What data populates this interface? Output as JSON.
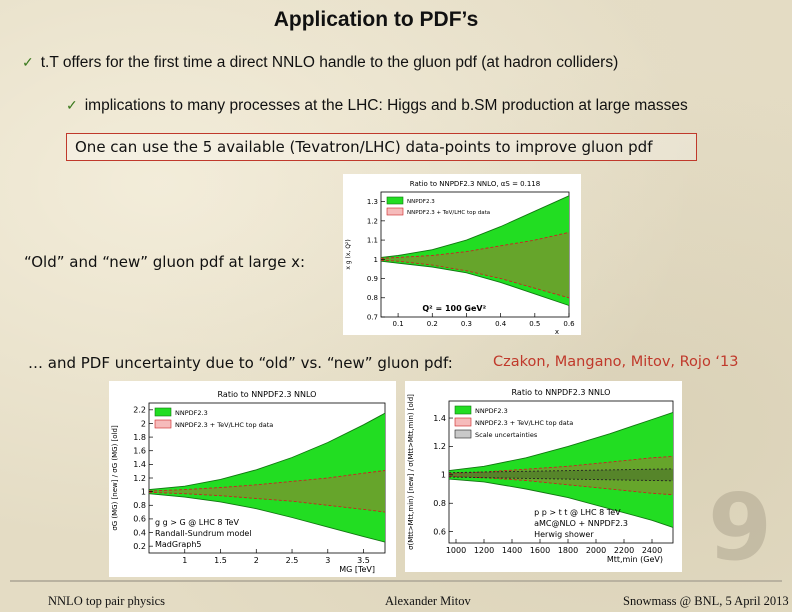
{
  "title": "Application to PDF’s",
  "bullets": [
    {
      "check": "✓",
      "text": "t.T offers for the first time a direct NNLO handle to the gluon pdf (at hadron colliders)"
    },
    {
      "check": "✓",
      "text": "implications to many processes at the LHC: Higgs and b.SM production at large masses"
    }
  ],
  "highlight": "One can use the 5 available (Tevatron/LHC) data-points to improve gluon pdf",
  "label_old_new": "“Old” and “new” gluon pdf at large x:",
  "label_uncertainty": "… and PDF uncertainty due to “old” vs. “new” gluon pdf:",
  "authors": "Czakon, Mangano, Mitov, Rojo ‘13",
  "page_number": "9",
  "footer": {
    "left": "NNLO top pair physics",
    "middle": "Alexander Mitov",
    "right": "Snowmass @ BNL, 5 April 2013"
  },
  "chart_data": [
    {
      "type": "area",
      "title": "Ratio to NNPDF2.3 NNLO, αS = 0.118",
      "ylabel": "x g (x, Q²)",
      "xlabel": "x",
      "annotation": "Q² = 100 GeV²",
      "legend": [
        "NNPDF2.3",
        "NNPDF2.3 + TeV/LHC top data"
      ],
      "legend_placement": "top-left",
      "x_ticks": [
        "0.1",
        "0.2",
        "0.3",
        "0.4",
        "0.5",
        "0.6"
      ],
      "y_ticks": [
        "0.7",
        "0.8",
        "0.9",
        "1",
        "1.1",
        "1.2",
        "1.3"
      ],
      "xlim": [
        0.05,
        0.6
      ],
      "ylim": [
        0.7,
        1.35
      ],
      "series": [
        {
          "name": "NNPDF2.3",
          "x": [
            0.05,
            0.1,
            0.2,
            0.3,
            0.4,
            0.5,
            0.6
          ],
          "lower": [
            0.99,
            0.98,
            0.96,
            0.93,
            0.88,
            0.82,
            0.76
          ],
          "upper": [
            1.01,
            1.02,
            1.05,
            1.1,
            1.17,
            1.25,
            1.33
          ]
        },
        {
          "name": "NNPDF2.3 + TeV/LHC top data",
          "x": [
            0.05,
            0.1,
            0.2,
            0.3,
            0.4,
            0.5,
            0.6
          ],
          "lower": [
            0.995,
            0.99,
            0.97,
            0.94,
            0.9,
            0.85,
            0.8
          ],
          "upper": [
            1.005,
            1.01,
            1.02,
            1.04,
            1.07,
            1.1,
            1.14
          ]
        }
      ]
    },
    {
      "type": "area",
      "title": "Ratio to NNPDF2.3 NNLO",
      "ylabel": "σG (MG) [new] / σG (MG) [old]",
      "xlabel": "MG [TeV]",
      "annotation": [
        "g g > G @ LHC 8 TeV",
        "Randall-Sundrum model",
        "MadGraph5"
      ],
      "legend": [
        "NNPDF2.3",
        "NNPDF2.3 + TeV/LHC top data"
      ],
      "legend_placement": "top-left",
      "x_ticks": [
        "1",
        "1.5",
        "2",
        "2.5",
        "3",
        "3.5"
      ],
      "y_ticks": [
        "0.2",
        "0.4",
        "0.6",
        "0.8",
        "1",
        "1.2",
        "1.4",
        "1.6",
        "1.8",
        "2",
        "2.2"
      ],
      "xlim": [
        0.5,
        3.8
      ],
      "ylim": [
        0.1,
        2.3
      ],
      "series": [
        {
          "name": "NNPDF2.3",
          "x": [
            0.5,
            1.0,
            1.5,
            2.0,
            2.5,
            3.0,
            3.5,
            3.8
          ],
          "lower": [
            0.97,
            0.92,
            0.85,
            0.75,
            0.62,
            0.48,
            0.34,
            0.26
          ],
          "upper": [
            1.03,
            1.08,
            1.18,
            1.32,
            1.5,
            1.72,
            1.98,
            2.15
          ]
        },
        {
          "name": "NNPDF2.3 + TeV/LHC top data",
          "x": [
            0.5,
            1.0,
            1.5,
            2.0,
            2.5,
            3.0,
            3.5,
            3.8
          ],
          "lower": [
            0.99,
            0.97,
            0.94,
            0.9,
            0.86,
            0.8,
            0.74,
            0.7
          ],
          "upper": [
            1.01,
            1.03,
            1.06,
            1.1,
            1.15,
            1.2,
            1.27,
            1.31
          ]
        }
      ]
    },
    {
      "type": "area",
      "title": "Ratio to NNPDF2.3 NNLO",
      "ylabel": "σ(Mtt>Mtt,min) [new] / σ(Mtt>Mtt,min) [old]",
      "xlabel": "Mtt,min (GeV)",
      "annotation": [
        "p p > t t @ LHC 8 TeV",
        "aMC@NLO + NNPDF2.3",
        "Herwig shower"
      ],
      "legend": [
        "NNPDF2.3",
        "NNPDF2.3 + TeV/LHC top data",
        "Scale uncertainties"
      ],
      "legend_placement": "top-left",
      "x_ticks": [
        "1000",
        "1200",
        "1400",
        "1600",
        "1800",
        "2000",
        "2200",
        "2400"
      ],
      "y_ticks": [
        "0.6",
        "0.8",
        "1",
        "1.2",
        "1.4"
      ],
      "xlim": [
        950,
        2550
      ],
      "ylim": [
        0.52,
        1.52
      ],
      "series": [
        {
          "name": "NNPDF2.3",
          "x": [
            950,
            1200,
            1500,
            1800,
            2100,
            2400,
            2550
          ],
          "lower": [
            0.97,
            0.95,
            0.9,
            0.84,
            0.76,
            0.68,
            0.63
          ],
          "upper": [
            1.03,
            1.06,
            1.12,
            1.2,
            1.29,
            1.39,
            1.44
          ]
        },
        {
          "name": "NNPDF2.3 + TeV/LHC top data",
          "x": [
            950,
            1200,
            1500,
            1800,
            2100,
            2400,
            2550
          ],
          "lower": [
            0.99,
            0.98,
            0.96,
            0.93,
            0.9,
            0.87,
            0.86
          ],
          "upper": [
            1.01,
            1.02,
            1.04,
            1.06,
            1.09,
            1.12,
            1.13
          ]
        },
        {
          "name": "Scale uncertainties",
          "x": [
            950,
            1200,
            1500,
            1800,
            2100,
            2400,
            2550
          ],
          "lower": [
            0.985,
            0.98,
            0.975,
            0.97,
            0.965,
            0.96,
            0.958
          ],
          "upper": [
            1.015,
            1.02,
            1.025,
            1.03,
            1.035,
            1.04,
            1.042
          ]
        }
      ]
    }
  ]
}
